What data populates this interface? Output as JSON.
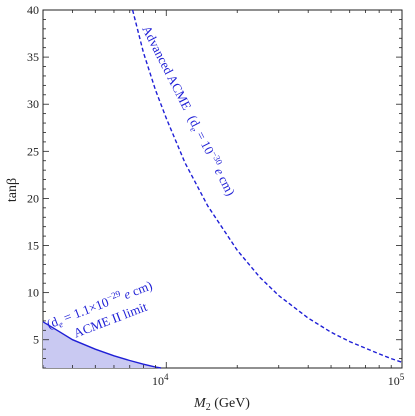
{
  "chart_data": {
    "type": "line",
    "xlabel": "M",
    "xlabel_sub": "2",
    "xlabel_unit": " (GeV)",
    "ylabel": "tanβ",
    "xscale": "log",
    "xlim": [
      3000,
      100000
    ],
    "ylim": [
      2,
      40
    ],
    "x_ticks": [
      {
        "value": 10000,
        "base": "10",
        "exp": "4"
      },
      {
        "value": 100000,
        "base": "10",
        "exp": "5"
      }
    ],
    "y_ticks": [
      5,
      10,
      15,
      20,
      25,
      30,
      35,
      40
    ],
    "grid": false,
    "series": [
      {
        "name": "ACME II limit",
        "style": "solid",
        "color": "#1f1fd6",
        "fill": "#c9c9f2",
        "x": [
          3000,
          3500,
          4000,
          5000,
          6000,
          7000,
          8000,
          9000,
          9500
        ],
        "y": [
          6.9,
          5.9,
          5.0,
          4.0,
          3.3,
          2.8,
          2.4,
          2.1,
          2.0
        ]
      },
      {
        "name": "Advanced ACME",
        "style": "dashed",
        "color": "#1f1fd6",
        "x": [
          7200,
          8000,
          9000,
          10000,
          12000,
          15000,
          20000,
          25000,
          30000,
          40000,
          50000,
          60000,
          70000,
          80000,
          90000,
          100000
        ],
        "y": [
          40,
          35.5,
          31.5,
          28.5,
          23.8,
          19.2,
          14.5,
          11.6,
          9.7,
          7.3,
          5.8,
          4.8,
          4.1,
          3.5,
          3.0,
          2.6
        ]
      }
    ],
    "annotations": {
      "acme2_value": "(d",
      "acme2_sub": "e",
      "acme2_eq": " = 1.1×10",
      "acme2_exp": "−29",
      "acme2_unit_e": " e",
      "acme2_unit_cm": " cm)",
      "acme2_label": "ACME II limit",
      "adv_label": "Advanced ACME",
      "adv_value": "(d",
      "adv_sub": "e",
      "adv_eq": " = 10",
      "adv_exp": "−30",
      "adv_unit_e": " e",
      "adv_unit_cm": " cm)"
    },
    "colors": {
      "line": "#1f1fd6",
      "fill": "#c9c9f2",
      "axis": "#222222"
    }
  }
}
